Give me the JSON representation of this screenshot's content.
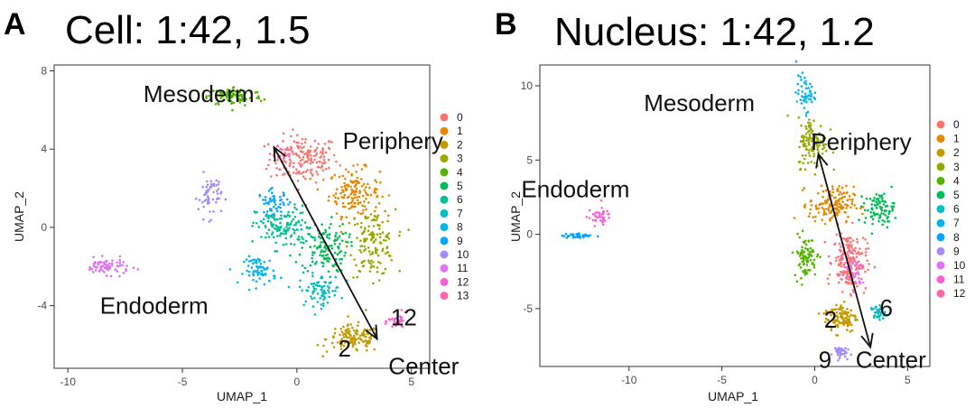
{
  "palette": [
    "#F8766D",
    "#E38900",
    "#C49A00",
    "#99A800",
    "#53B400",
    "#00BC56",
    "#00C094",
    "#00BFC4",
    "#00B6EB",
    "#06A4FF",
    "#A58AFF",
    "#DF70F8",
    "#FB61D7",
    "#FF66A8"
  ],
  "chart_data": [
    {
      "type": "scatter",
      "panel_letter": "A",
      "title": "Cell: 1:42, 1.5",
      "xlabel": "UMAP_1",
      "ylabel": "UMAP_2",
      "xlim": [
        -10.6,
        5.8
      ],
      "ylim": [
        -7.2,
        8.3
      ],
      "xticks": [
        -10,
        -5,
        0,
        5
      ],
      "yticks": [
        8,
        4,
        0,
        -4
      ],
      "legend": {
        "position": "right",
        "entries": [
          "0",
          "1",
          "2",
          "3",
          "4",
          "5",
          "6",
          "7",
          "8",
          "9",
          "10",
          "11",
          "12",
          "13"
        ]
      },
      "clusters": [
        {
          "label": "0",
          "center": [
            0.3,
            3.5
          ],
          "spread": [
            1.5,
            1.2
          ],
          "count": 170
        },
        {
          "label": "1",
          "center": [
            2.5,
            1.8
          ],
          "spread": [
            1.1,
            1.2
          ],
          "count": 150
        },
        {
          "label": "2",
          "center": [
            2.5,
            -5.7
          ],
          "spread": [
            1.2,
            0.7
          ],
          "count": 130
        },
        {
          "label": "3",
          "center": [
            3.3,
            -0.8
          ],
          "spread": [
            1.0,
            1.7
          ],
          "count": 140
        },
        {
          "label": "4",
          "center": [
            -2.7,
            6.7
          ],
          "spread": [
            1.2,
            0.5
          ],
          "count": 90
        },
        {
          "label": "5",
          "center": [
            1.2,
            -1.0
          ],
          "spread": [
            1.0,
            1.3
          ],
          "count": 130
        },
        {
          "label": "6",
          "center": [
            -0.6,
            0.0
          ],
          "spread": [
            1.2,
            1.1
          ],
          "count": 130
        },
        {
          "label": "7",
          "center": [
            1.0,
            -3.2
          ],
          "spread": [
            0.9,
            0.8
          ],
          "count": 80
        },
        {
          "label": "8",
          "center": [
            -1.6,
            -2.2
          ],
          "spread": [
            0.7,
            0.7
          ],
          "count": 70
        },
        {
          "label": "9",
          "center": [
            -1.0,
            1.3
          ],
          "spread": [
            0.7,
            0.6
          ],
          "count": 50
        },
        {
          "label": "10",
          "center": [
            -3.8,
            1.6
          ],
          "spread": [
            0.5,
            1.1
          ],
          "count": 60
        },
        {
          "label": "11",
          "center": [
            -8.3,
            -2.0
          ],
          "spread": [
            1.0,
            0.4
          ],
          "count": 70
        },
        {
          "label": "12",
          "center": [
            4.4,
            -4.8
          ],
          "spread": [
            0.4,
            0.4
          ],
          "count": 30
        },
        {
          "label": "13",
          "center": [
            -0.6,
            3.7
          ],
          "spread": [
            0.8,
            0.7
          ],
          "count": 20
        }
      ],
      "trajectory": {
        "from": [
          3.5,
          -5.7
        ],
        "to": [
          -1.0,
          4.1
        ]
      },
      "annotations": [
        {
          "text": "Mesoderm",
          "x": -6.7,
          "y": 6.4
        },
        {
          "text": "Periphery",
          "x": 2.0,
          "y": 4.0
        },
        {
          "text": "Endoderm",
          "x": -8.6,
          "y": -4.4
        },
        {
          "text": "2",
          "x": 1.8,
          "y": -6.6
        },
        {
          "text": "12",
          "x": 4.1,
          "y": -5.0
        },
        {
          "text": "Center",
          "x": 4.0,
          "y": -7.5
        }
      ]
    },
    {
      "type": "scatter",
      "panel_letter": "B",
      "title": "Nucleus: 1:42, 1.2",
      "xlabel": "UMAP_1",
      "ylabel": "UMAP_2",
      "xlim": [
        -14.8,
        6.2
      ],
      "ylim": [
        -8.9,
        11.4
      ],
      "xticks": [
        -10,
        -5,
        0,
        5
      ],
      "yticks": [
        10,
        5,
        0,
        -5
      ],
      "legend": {
        "position": "right",
        "entries": [
          "0",
          "1",
          "2",
          "3",
          "4",
          "5",
          "6",
          "7",
          "8",
          "9",
          "10",
          "11",
          "12"
        ]
      },
      "clusters": [
        {
          "label": "0",
          "center": [
            1.9,
            -1.8
          ],
          "spread": [
            0.9,
            2.0
          ],
          "count": 170
        },
        {
          "label": "1",
          "center": [
            0.9,
            2.0
          ],
          "spread": [
            1.2,
            1.2
          ],
          "count": 150
        },
        {
          "label": "2",
          "center": [
            1.4,
            -5.6
          ],
          "spread": [
            0.9,
            1.0
          ],
          "count": 110
        },
        {
          "label": "3",
          "center": [
            -0.1,
            6.2
          ],
          "spread": [
            0.8,
            1.7
          ],
          "count": 120
        },
        {
          "label": "4",
          "center": [
            -0.5,
            -1.5
          ],
          "spread": [
            0.6,
            1.4
          ],
          "count": 90
        },
        {
          "label": "5",
          "center": [
            3.5,
            1.7
          ],
          "spread": [
            0.8,
            1.1
          ],
          "count": 90
        },
        {
          "label": "6",
          "center": [
            3.4,
            -5.3
          ],
          "spread": [
            0.4,
            0.5
          ],
          "count": 40
        },
        {
          "label": "7",
          "center": [
            -0.5,
            9.5
          ],
          "spread": [
            0.5,
            1.2
          ],
          "count": 50
        },
        {
          "label": "8",
          "center": [
            -12.8,
            -0.1
          ],
          "spread": [
            0.8,
            0.2
          ],
          "count": 40
        },
        {
          "label": "9",
          "center": [
            1.3,
            -7.9
          ],
          "spread": [
            0.4,
            0.4
          ],
          "count": 40
        },
        {
          "label": "10",
          "center": [
            2.2,
            -2.5
          ],
          "spread": [
            0.6,
            1.2
          ],
          "count": 30
        },
        {
          "label": "11",
          "center": [
            -11.6,
            1.2
          ],
          "spread": [
            0.6,
            0.6
          ],
          "count": 40
        },
        {
          "label": "12",
          "center": [
            1.5,
            -2.0
          ],
          "spread": [
            0.8,
            1.5
          ],
          "count": 30
        }
      ],
      "trajectory": {
        "from": [
          3.0,
          -7.6
        ],
        "to": [
          0.2,
          5.4
        ]
      },
      "annotations": [
        {
          "text": "Mesoderm",
          "x": -9.2,
          "y": 8.3
        },
        {
          "text": "Periphery",
          "x": -0.2,
          "y": 5.7
        },
        {
          "text": "Endoderm",
          "x": -15.8,
          "y": 2.5
        },
        {
          "text": "2",
          "x": 0.5,
          "y": -6.3
        },
        {
          "text": "6",
          "x": 3.5,
          "y": -5.5
        },
        {
          "text": "9",
          "x": 0.2,
          "y": -9.0
        },
        {
          "text": "Center",
          "x": 2.2,
          "y": -9.0
        }
      ]
    }
  ]
}
